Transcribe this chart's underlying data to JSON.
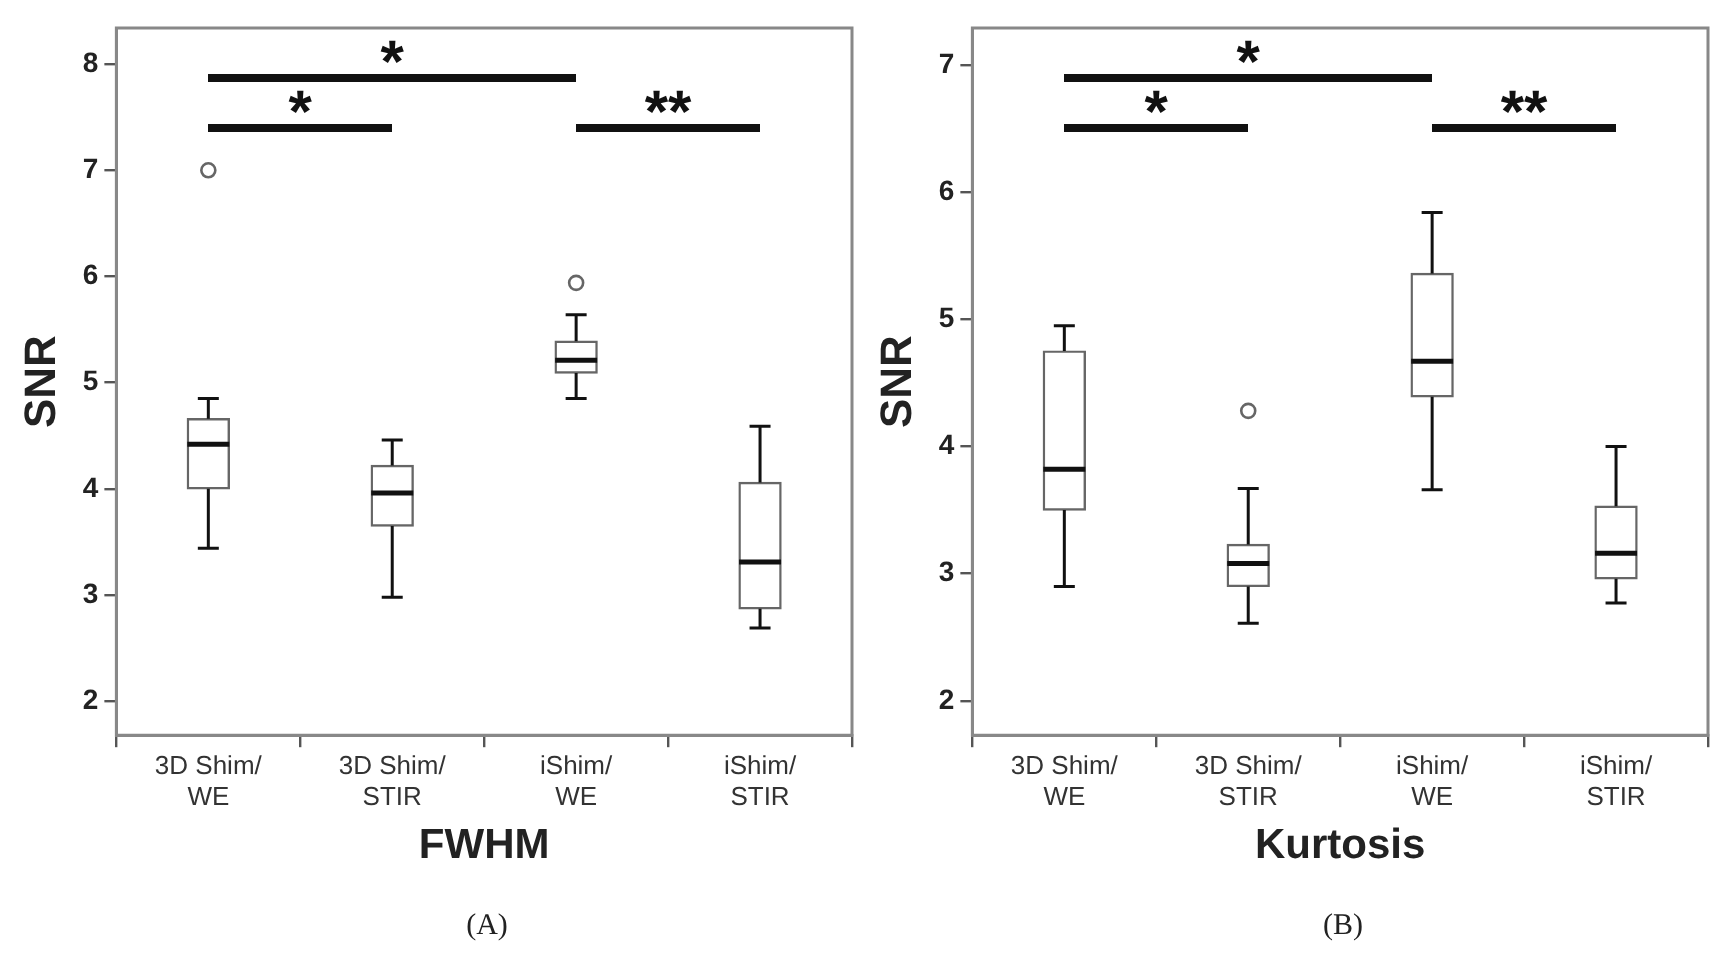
{
  "chart_data": [
    {
      "type": "box",
      "title": "(A)",
      "xlabel": "FWHM",
      "ylabel": "SNR",
      "categories": [
        "3D Shim/WE",
        "3D Shim/STIR",
        "iShim/WE",
        "iShim/STIR"
      ],
      "color": "#666666",
      "boxes": [
        {
          "low": 3.44,
          "q1": 4.0,
          "median": 4.42,
          "q3": 4.66,
          "high": 4.85,
          "outliers": [
            7.0
          ]
        },
        {
          "low": 2.98,
          "q1": 3.65,
          "median": 3.96,
          "q3": 4.22,
          "high": 4.46
        },
        {
          "low": 4.85,
          "q1": 5.09,
          "median": 5.21,
          "q3": 5.39,
          "high": 5.64,
          "outliers": [
            5.94
          ]
        },
        {
          "low": 2.69,
          "q1": 2.87,
          "median": 3.31,
          "q3": 4.06,
          "high": 4.59
        }
      ],
      "ylim": [
        1.68,
        8.34
      ],
      "yticks": [
        2,
        3,
        4,
        5,
        6,
        7,
        8
      ],
      "grid": false,
      "legend": false,
      "annotations": [
        "*",
        "*",
        "**"
      ]
    },
    {
      "type": "box",
      "title": "(B)",
      "xlabel": "Kurtosis",
      "ylabel": "SNR",
      "categories": [
        "3D Shim/WE",
        "3D Shim/STIR",
        "iShim/WE",
        "iShim/STIR"
      ],
      "color": "#666666",
      "boxes": [
        {
          "low": 2.9,
          "q1": 3.5,
          "median": 3.82,
          "q3": 4.75,
          "high": 4.95
        },
        {
          "low": 2.61,
          "q1": 2.9,
          "median": 3.08,
          "q3": 3.23,
          "high": 3.67,
          "outliers": [
            4.28
          ]
        },
        {
          "low": 3.66,
          "q1": 4.39,
          "median": 4.67,
          "q3": 5.36,
          "high": 5.84
        },
        {
          "low": 2.77,
          "q1": 2.96,
          "median": 3.16,
          "q3": 3.53,
          "high": 4.0
        }
      ],
      "ylim": [
        1.73,
        7.29
      ],
      "yticks": [
        2,
        3,
        4,
        5,
        6,
        7
      ],
      "grid": false,
      "legend": false,
      "annotations": [
        "*",
        "*",
        "**"
      ]
    }
  ]
}
